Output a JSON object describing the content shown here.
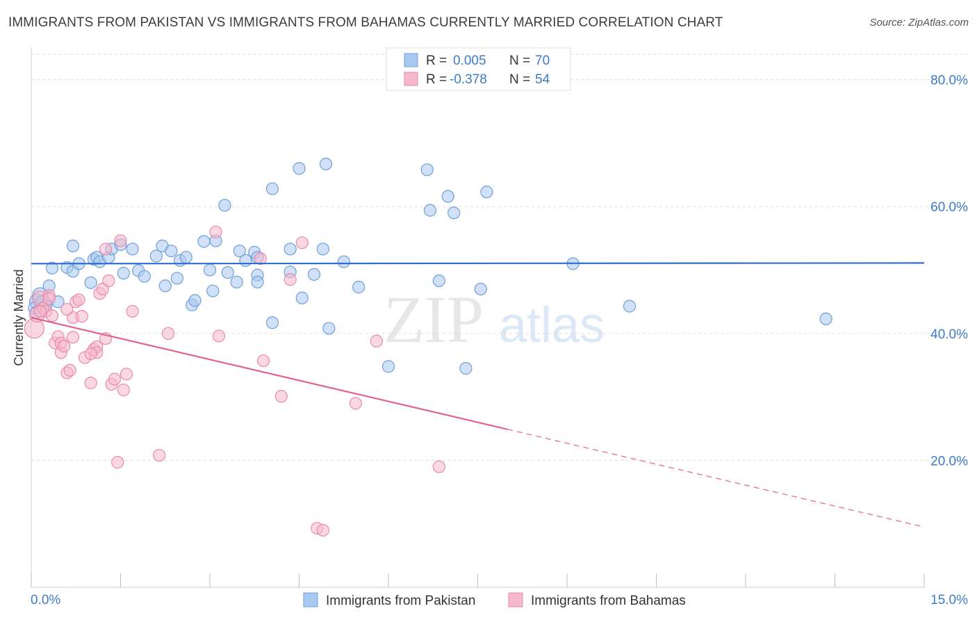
{
  "title": "IMMIGRANTS FROM PAKISTAN VS IMMIGRANTS FROM BAHAMAS CURRENTLY MARRIED CORRELATION CHART",
  "source": "Source: ZipAtlas.com",
  "watermark": {
    "zip": "ZIP",
    "atlas": "atlas"
  },
  "colors": {
    "blue_fill": "#a9c8f0",
    "blue_stroke": "#6e9fd8",
    "blue_line": "#2f6fcc",
    "pink_fill": "#f6b8cc",
    "pink_stroke": "#e88aa9",
    "pink_line": "#e0628e",
    "axis_text": "#3d7cc9",
    "grid": "#dddddd"
  },
  "legend": {
    "rows": [
      {
        "r_label": "R =",
        "r_value": "0.005",
        "n_label": "N =",
        "n_value": "70"
      },
      {
        "r_label": "R =",
        "r_value": "-0.378",
        "n_label": "N =",
        "n_value": "54"
      }
    ]
  },
  "chart_data": {
    "type": "scatter",
    "xlabel": "",
    "ylabel": "Currently Married",
    "xlim": [
      0,
      15
    ],
    "ylim": [
      0,
      84
    ],
    "x_tick_labels": {
      "left": "0.0%",
      "right": "15.0%"
    },
    "y_ticks": [
      {
        "value": 80,
        "label": "80.0%"
      },
      {
        "value": 60,
        "label": "60.0%"
      },
      {
        "value": 40,
        "label": "40.0%"
      },
      {
        "value": 20,
        "label": "20.0%"
      }
    ],
    "series": [
      {
        "name": "Immigrants from Pakistan",
        "color": "blue",
        "R": 0.005,
        "N": 70,
        "trend": {
          "x0": 0,
          "y0": 51.0,
          "x1": 15,
          "y1": 51.1,
          "solid_until": 15
        },
        "points": [
          [
            0.1,
            45.0
          ],
          [
            0.15,
            46.0
          ],
          [
            0.2,
            44.8
          ],
          [
            0.25,
            44.5
          ],
          [
            0.3,
            47.5
          ],
          [
            0.45,
            45.0
          ],
          [
            0.35,
            50.3
          ],
          [
            0.6,
            50.4
          ],
          [
            0.7,
            49.8
          ],
          [
            0.8,
            51.0
          ],
          [
            0.7,
            53.8
          ],
          [
            1.05,
            51.7
          ],
          [
            1.1,
            52.0
          ],
          [
            1.15,
            51.3
          ],
          [
            1.0,
            48.0
          ],
          [
            1.3,
            52.0
          ],
          [
            1.35,
            53.3
          ],
          [
            1.5,
            54.0
          ],
          [
            1.55,
            49.5
          ],
          [
            1.7,
            53.3
          ],
          [
            1.8,
            49.9
          ],
          [
            1.9,
            49.0
          ],
          [
            2.1,
            52.2
          ],
          [
            2.2,
            53.8
          ],
          [
            2.25,
            47.5
          ],
          [
            2.35,
            53.0
          ],
          [
            2.45,
            48.7
          ],
          [
            2.5,
            51.5
          ],
          [
            2.6,
            52.0
          ],
          [
            2.7,
            44.5
          ],
          [
            2.75,
            45.2
          ],
          [
            2.9,
            54.5
          ],
          [
            3.0,
            50.0
          ],
          [
            3.05,
            46.7
          ],
          [
            3.1,
            54.6
          ],
          [
            3.25,
            60.2
          ],
          [
            3.3,
            49.6
          ],
          [
            3.5,
            53.0
          ],
          [
            3.45,
            48.1
          ],
          [
            3.6,
            51.5
          ],
          [
            3.75,
            52.8
          ],
          [
            3.8,
            52.0
          ],
          [
            3.8,
            49.2
          ],
          [
            3.8,
            48.1
          ],
          [
            4.05,
            62.8
          ],
          [
            4.05,
            41.7
          ],
          [
            4.35,
            53.3
          ],
          [
            4.35,
            49.7
          ],
          [
            4.5,
            66.0
          ],
          [
            4.55,
            45.6
          ],
          [
            4.75,
            49.3
          ],
          [
            4.9,
            53.3
          ],
          [
            4.95,
            66.7
          ],
          [
            5.0,
            40.8
          ],
          [
            5.25,
            51.3
          ],
          [
            5.5,
            47.3
          ],
          [
            6.0,
            34.8
          ],
          [
            6.65,
            65.8
          ],
          [
            6.7,
            59.4
          ],
          [
            6.85,
            48.3
          ],
          [
            7.0,
            61.6
          ],
          [
            7.1,
            59.0
          ],
          [
            7.3,
            34.5
          ],
          [
            7.55,
            47.0
          ],
          [
            7.65,
            62.3
          ],
          [
            9.1,
            51.0
          ],
          [
            10.05,
            44.3
          ],
          [
            13.35,
            42.3
          ],
          [
            0.05,
            44.0
          ],
          [
            0.08,
            43.3
          ]
        ]
      },
      {
        "name": "Immigrants from Bahamas",
        "color": "pink",
        "R": -0.378,
        "N": 54,
        "trend": {
          "x0": 0,
          "y0": 42.5,
          "x1": 15,
          "y1": 9.5,
          "solid_until": 8.0
        },
        "points": [
          [
            0.05,
            40.8
          ],
          [
            0.1,
            43.0
          ],
          [
            0.15,
            45.5
          ],
          [
            0.2,
            44.0
          ],
          [
            0.25,
            43.5
          ],
          [
            0.3,
            46.0
          ],
          [
            0.35,
            42.8
          ],
          [
            0.4,
            38.5
          ],
          [
            0.45,
            39.5
          ],
          [
            0.5,
            37.0
          ],
          [
            0.5,
            38.5
          ],
          [
            0.55,
            38.0
          ],
          [
            0.6,
            33.8
          ],
          [
            0.65,
            34.2
          ],
          [
            0.7,
            42.5
          ],
          [
            0.75,
            45.0
          ],
          [
            0.8,
            45.3
          ],
          [
            0.85,
            42.7
          ],
          [
            0.9,
            36.2
          ],
          [
            1.0,
            32.2
          ],
          [
            1.05,
            37.5
          ],
          [
            1.1,
            37.9
          ],
          [
            1.1,
            37.0
          ],
          [
            1.15,
            46.3
          ],
          [
            1.2,
            47.0
          ],
          [
            1.25,
            39.2
          ],
          [
            1.3,
            48.3
          ],
          [
            1.35,
            32.0
          ],
          [
            1.4,
            32.8
          ],
          [
            1.45,
            19.7
          ],
          [
            1.5,
            54.6
          ],
          [
            1.55,
            31.1
          ],
          [
            1.6,
            33.6
          ],
          [
            1.7,
            43.5
          ],
          [
            2.15,
            20.8
          ],
          [
            2.3,
            40.0
          ],
          [
            3.1,
            56.0
          ],
          [
            3.15,
            39.6
          ],
          [
            3.85,
            51.8
          ],
          [
            3.9,
            35.7
          ],
          [
            4.2,
            30.1
          ],
          [
            4.35,
            48.5
          ],
          [
            4.55,
            54.3
          ],
          [
            4.8,
            9.3
          ],
          [
            4.9,
            9.0
          ],
          [
            5.45,
            29.0
          ],
          [
            5.8,
            38.8
          ],
          [
            6.85,
            19.0
          ],
          [
            1.25,
            53.3
          ],
          [
            0.6,
            43.8
          ],
          [
            0.7,
            39.4
          ],
          [
            1.0,
            36.8
          ],
          [
            0.3,
            45.5
          ],
          [
            0.15,
            43.5
          ]
        ]
      }
    ]
  }
}
